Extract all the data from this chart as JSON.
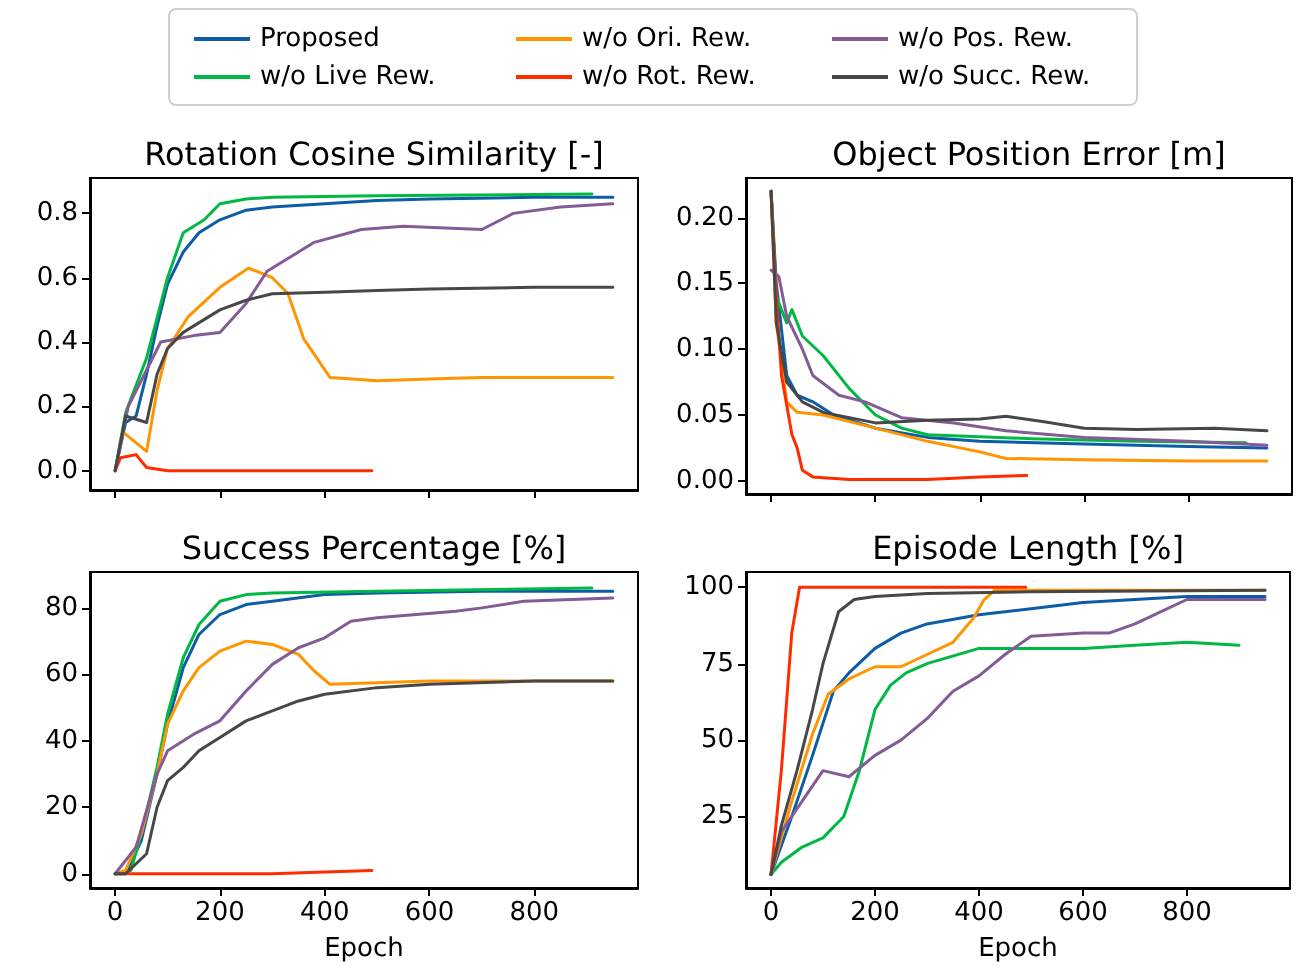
{
  "chart_data": [
    {
      "type": "line",
      "title": "Rotation Cosine Similarity [-]",
      "legend": "top",
      "tick_labels": "y",
      "xlim": [
        -48,
        998
      ],
      "xticks": [
        0,
        200,
        400,
        600,
        800
      ],
      "ylim": [
        -0.06,
        0.91
      ],
      "yticks": [
        {
          "value": 0,
          "label": "0.0"
        },
        {
          "value": 0.2,
          "label": "0.2"
        },
        {
          "value": 0.4,
          "label": "0.4"
        },
        {
          "value": 0.6,
          "label": "0.6"
        },
        {
          "value": 0.8,
          "label": "0.8"
        }
      ],
      "series": [
        {
          "name": "Proposed",
          "color": "#0c5da5",
          "x": [
            0,
            20,
            40,
            60,
            80,
            100,
            130,
            160,
            200,
            250,
            300,
            400,
            500,
            600,
            800,
            950
          ],
          "values": [
            0,
            0.15,
            0.17,
            0.3,
            0.45,
            0.58,
            0.68,
            0.74,
            0.78,
            0.81,
            0.82,
            0.83,
            0.84,
            0.845,
            0.85,
            0.85
          ]
        },
        {
          "name": "w/o Live Rew.",
          "color": "#00b945",
          "x": [
            0,
            20,
            60,
            100,
            130,
            170,
            200,
            250,
            300,
            500,
            910
          ],
          "values": [
            0,
            0.18,
            0.35,
            0.6,
            0.74,
            0.78,
            0.83,
            0.845,
            0.85,
            0.855,
            0.86
          ]
        },
        {
          "name": "w/o Ori. Rew.",
          "color": "#ff9500",
          "x": [
            0,
            15,
            60,
            80,
            100,
            140,
            200,
            255,
            300,
            330,
            360,
            410,
            500,
            600,
            700,
            800,
            950
          ],
          "values": [
            0,
            0.12,
            0.06,
            0.25,
            0.38,
            0.48,
            0.57,
            0.63,
            0.6,
            0.55,
            0.41,
            0.29,
            0.28,
            0.285,
            0.29,
            0.29,
            0.29
          ]
        },
        {
          "name": "w/o Rot. Rew.",
          "color": "#ff2c00",
          "x": [
            0,
            10,
            40,
            60,
            100,
            200,
            300,
            400,
            490
          ],
          "values": [
            0,
            0.04,
            0.05,
            0.01,
            0,
            0,
            0,
            0,
            0
          ]
        },
        {
          "name": "w/o Pos. Rew.",
          "color": "#845b97",
          "x": [
            0,
            25,
            87,
            150,
            200,
            250,
            290,
            380,
            470,
            550,
            700,
            760,
            850,
            950
          ],
          "values": [
            0,
            0.2,
            0.4,
            0.42,
            0.43,
            0.52,
            0.62,
            0.71,
            0.75,
            0.76,
            0.75,
            0.8,
            0.82,
            0.83
          ]
        },
        {
          "name": "w/o Succ. Rew.",
          "color": "#474747",
          "x": [
            0,
            20,
            60,
            80,
            100,
            130,
            200,
            250,
            300,
            400,
            500,
            600,
            800,
            950
          ],
          "values": [
            0,
            0.17,
            0.15,
            0.3,
            0.38,
            0.43,
            0.5,
            0.53,
            0.55,
            0.555,
            0.56,
            0.565,
            0.57,
            0.57
          ]
        }
      ]
    },
    {
      "type": "line",
      "title": "Object Position Error [m]",
      "tick_labels": "y",
      "xlim": [
        -48,
        998
      ],
      "xticks": [
        0,
        200,
        400,
        600,
        800
      ],
      "ylim": [
        -0.01,
        0.23
      ],
      "yticks": [
        {
          "value": 0,
          "label": "0.00"
        },
        {
          "value": 0.05,
          "label": "0.05"
        },
        {
          "value": 0.1,
          "label": "0.10"
        },
        {
          "value": 0.15,
          "label": "0.15"
        },
        {
          "value": 0.2,
          "label": "0.20"
        }
      ],
      "series": [
        {
          "color": "#0c5da5",
          "x": [
            0,
            10,
            30,
            50,
            80,
            120,
            200,
            300,
            400,
            600,
            800,
            950
          ],
          "values": [
            0.22,
            0.15,
            0.08,
            0.065,
            0.06,
            0.05,
            0.04,
            0.033,
            0.03,
            0.028,
            0.026,
            0.025
          ]
        },
        {
          "color": "#00b945",
          "x": [
            0,
            10,
            30,
            40,
            60,
            100,
            150,
            200,
            250,
            300,
            500,
            700,
            910
          ],
          "values": [
            0.22,
            0.14,
            0.12,
            0.13,
            0.11,
            0.095,
            0.07,
            0.05,
            0.04,
            0.035,
            0.032,
            0.03,
            0.029
          ]
        },
        {
          "color": "#ff9500",
          "x": [
            0,
            10,
            30,
            50,
            100,
            200,
            300,
            400,
            450,
            600,
            800,
            950
          ],
          "values": [
            0.22,
            0.12,
            0.06,
            0.052,
            0.05,
            0.04,
            0.03,
            0.022,
            0.017,
            0.016,
            0.015,
            0.015
          ]
        },
        {
          "color": "#ff2c00",
          "x": [
            0,
            10,
            20,
            40,
            50,
            60,
            80,
            150,
            300,
            400,
            490
          ],
          "values": [
            0.22,
            0.14,
            0.08,
            0.035,
            0.025,
            0.008,
            0.003,
            0.001,
            0.001,
            0.003,
            0.004
          ]
        },
        {
          "color": "#845b97",
          "x": [
            0,
            15,
            30,
            60,
            80,
            130,
            180,
            250,
            350,
            450,
            600,
            800,
            950
          ],
          "values": [
            0.16,
            0.155,
            0.125,
            0.1,
            0.08,
            0.065,
            0.06,
            0.048,
            0.044,
            0.038,
            0.033,
            0.03,
            0.027
          ]
        },
        {
          "color": "#474747",
          "x": [
            0,
            10,
            30,
            60,
            100,
            200,
            300,
            400,
            450,
            520,
            600,
            700,
            850,
            950
          ],
          "values": [
            0.22,
            0.12,
            0.075,
            0.06,
            0.052,
            0.044,
            0.046,
            0.047,
            0.049,
            0.045,
            0.04,
            0.039,
            0.04,
            0.038
          ]
        }
      ]
    },
    {
      "type": "line",
      "title": "Success Percentage [%]",
      "xlabel": "Epoch",
      "xlim": [
        -48,
        998
      ],
      "xticks": [
        0,
        200,
        400,
        600,
        800
      ],
      "ylim": [
        -4.3,
        90.8
      ],
      "yticks": [
        0,
        20,
        40,
        60,
        80
      ],
      "series": [
        {
          "color": "#0c5da5",
          "x": [
            0,
            20,
            50,
            80,
            100,
            130,
            160,
            200,
            250,
            300,
            400,
            500,
            700,
            950
          ],
          "values": [
            0,
            0,
            10,
            30,
            45,
            62,
            72,
            78,
            81,
            82,
            84,
            84.5,
            85,
            85
          ]
        },
        {
          "color": "#00b945",
          "x": [
            0,
            30,
            50,
            80,
            100,
            130,
            160,
            200,
            250,
            300,
            500,
            910
          ],
          "values": [
            0,
            1,
            12,
            32,
            48,
            65,
            75,
            82,
            84,
            84.5,
            85,
            86
          ]
        },
        {
          "color": "#ff9500",
          "x": [
            0,
            20,
            50,
            80,
            100,
            130,
            160,
            200,
            250,
            300,
            350,
            380,
            410,
            500,
            600,
            800,
            950
          ],
          "values": [
            0,
            1,
            12,
            30,
            45,
            55,
            62,
            67,
            70,
            69,
            66,
            61,
            57,
            57.5,
            58,
            58,
            58
          ]
        },
        {
          "color": "#ff2c00",
          "x": [
            0,
            200,
            300,
            400,
            490
          ],
          "values": [
            0,
            0,
            0,
            0.5,
            1
          ]
        },
        {
          "color": "#845b97",
          "x": [
            0,
            40,
            80,
            100,
            150,
            200,
            250,
            300,
            350,
            400,
            450,
            500,
            650,
            700,
            780,
            950
          ],
          "values": [
            0,
            8,
            30,
            37,
            42,
            46,
            55,
            63,
            68,
            71,
            76,
            77,
            79,
            80,
            82,
            83
          ]
        },
        {
          "color": "#474747",
          "x": [
            0,
            20,
            60,
            80,
            100,
            130,
            160,
            200,
            250,
            300,
            350,
            400,
            500,
            600,
            800,
            950
          ],
          "values": [
            0,
            0,
            6,
            20,
            28,
            32,
            37,
            41,
            46,
            49,
            52,
            54,
            56,
            57,
            58,
            58
          ]
        }
      ]
    },
    {
      "type": "line",
      "title": "Episode Length [%]",
      "xlabel": "Epoch",
      "xlim": [
        -48,
        998
      ],
      "xticks": [
        0,
        200,
        400,
        600,
        800
      ],
      "ylim": [
        1.6,
        105
      ],
      "yticks": [
        25,
        50,
        75,
        100
      ],
      "series": [
        {
          "color": "#0c5da5",
          "x": [
            0,
            40,
            80,
            120,
            150,
            200,
            250,
            300,
            400,
            500,
            600,
            700,
            800,
            950
          ],
          "values": [
            6,
            25,
            45,
            66,
            72,
            80,
            85,
            88,
            91,
            93,
            95,
            96,
            97,
            97
          ]
        },
        {
          "color": "#00b945",
          "x": [
            0,
            20,
            60,
            100,
            140,
            170,
            200,
            230,
            260,
            300,
            400,
            500,
            600,
            700,
            800,
            900
          ],
          "values": [
            6,
            10,
            15,
            18,
            25,
            40,
            60,
            68,
            72,
            75,
            80,
            80,
            80,
            81,
            82,
            81
          ]
        },
        {
          "color": "#ff9500",
          "x": [
            0,
            40,
            80,
            110,
            150,
            200,
            250,
            300,
            350,
            390,
            410,
            430,
            600,
            950
          ],
          "values": [
            6,
            30,
            52,
            65,
            70,
            74,
            74,
            78,
            82,
            90,
            96,
            99,
            99,
            99
          ]
        },
        {
          "color": "#ff2c00",
          "x": [
            0,
            20,
            40,
            55,
            60,
            490
          ],
          "values": [
            6,
            40,
            85,
            100,
            100,
            100
          ]
        },
        {
          "color": "#845b97",
          "x": [
            0,
            20,
            60,
            100,
            150,
            200,
            250,
            300,
            350,
            400,
            450,
            500,
            600,
            650,
            700,
            750,
            800,
            950
          ],
          "values": [
            6,
            20,
            30,
            40,
            38,
            45,
            50,
            57,
            66,
            71,
            78,
            84,
            85,
            85,
            88,
            92,
            96,
            96
          ]
        },
        {
          "color": "#474747",
          "x": [
            0,
            20,
            50,
            80,
            100,
            130,
            160,
            200,
            300,
            500,
            950
          ],
          "values": [
            6,
            22,
            40,
            60,
            75,
            92,
            96,
            97,
            98,
            98.5,
            99
          ]
        }
      ]
    }
  ]
}
